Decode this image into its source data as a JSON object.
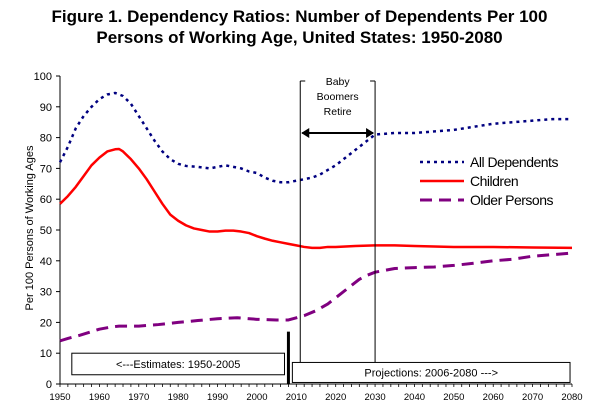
{
  "title_line1": "Figure 1.  Dependency Ratios: Number of Dependents Per 100",
  "title_line2": "Persons of Working Age, United States: 1950-2080",
  "chart_data": {
    "type": "line",
    "title": "Figure 1.  Dependency Ratios: Number of Dependents Per 100 Persons of Working Age, United States: 1950-2080",
    "ylabel": "Per 100 Persons of Working Ages",
    "xlabel": "",
    "xlim": [
      1950,
      2080
    ],
    "ylim": [
      0,
      100
    ],
    "x_ticks": [
      "1950",
      "1960",
      "1970",
      "1980",
      "1990",
      "2000",
      "2010",
      "2020",
      "2030",
      "2040",
      "2050",
      "2060",
      "2070",
      "2080"
    ],
    "y_ticks": [
      "0",
      "10",
      "20",
      "30",
      "40",
      "50",
      "60",
      "70",
      "80",
      "90",
      "100"
    ],
    "grid": false,
    "legend_position": "right",
    "series": [
      {
        "name": "All Dependents",
        "color": "#000080",
        "dash": "dotted",
        "points": [
          [
            1950,
            72
          ],
          [
            1952,
            77
          ],
          [
            1954,
            83
          ],
          [
            1956,
            87
          ],
          [
            1958,
            90
          ],
          [
            1960,
            92.5
          ],
          [
            1962,
            94
          ],
          [
            1964,
            94.5
          ],
          [
            1966,
            93.5
          ],
          [
            1968,
            91
          ],
          [
            1970,
            87
          ],
          [
            1972,
            83
          ],
          [
            1974,
            79
          ],
          [
            1976,
            75.5
          ],
          [
            1978,
            73
          ],
          [
            1980,
            71.5
          ],
          [
            1982,
            70.8
          ],
          [
            1985,
            70.5
          ],
          [
            1988,
            70
          ],
          [
            1990,
            70.5
          ],
          [
            1992,
            71
          ],
          [
            1994,
            70.5
          ],
          [
            1996,
            70
          ],
          [
            1998,
            69
          ],
          [
            2000,
            68.5
          ],
          [
            2002,
            67
          ],
          [
            2004,
            66
          ],
          [
            2006,
            65.5
          ],
          [
            2008,
            65.5
          ],
          [
            2010,
            66
          ],
          [
            2012,
            66.5
          ],
          [
            2014,
            67
          ],
          [
            2016,
            68
          ],
          [
            2018,
            69.5
          ],
          [
            2020,
            71
          ],
          [
            2022,
            73
          ],
          [
            2024,
            75
          ],
          [
            2026,
            77
          ],
          [
            2028,
            79
          ],
          [
            2030,
            81
          ],
          [
            2035,
            81.5
          ],
          [
            2040,
            81.5
          ],
          [
            2045,
            82
          ],
          [
            2050,
            82.5
          ],
          [
            2055,
            83.5
          ],
          [
            2060,
            84.5
          ],
          [
            2065,
            85
          ],
          [
            2070,
            85.5
          ],
          [
            2075,
            86
          ],
          [
            2080,
            86
          ]
        ]
      },
      {
        "name": "Children",
        "color": "#ff0000",
        "dash": "solid",
        "points": [
          [
            1950,
            58.5
          ],
          [
            1952,
            61
          ],
          [
            1954,
            64
          ],
          [
            1956,
            67.5
          ],
          [
            1958,
            71
          ],
          [
            1960,
            73.5
          ],
          [
            1962,
            75.5
          ],
          [
            1964,
            76.2
          ],
          [
            1965,
            76.3
          ],
          [
            1966,
            75.5
          ],
          [
            1968,
            73
          ],
          [
            1970,
            70
          ],
          [
            1972,
            66.5
          ],
          [
            1974,
            62.5
          ],
          [
            1976,
            58.5
          ],
          [
            1978,
            55
          ],
          [
            1980,
            53
          ],
          [
            1982,
            51.5
          ],
          [
            1984,
            50.5
          ],
          [
            1986,
            50
          ],
          [
            1988,
            49.5
          ],
          [
            1990,
            49.5
          ],
          [
            1992,
            49.8
          ],
          [
            1994,
            49.8
          ],
          [
            1996,
            49.5
          ],
          [
            1998,
            49
          ],
          [
            2000,
            48
          ],
          [
            2002,
            47.2
          ],
          [
            2004,
            46.5
          ],
          [
            2006,
            46
          ],
          [
            2008,
            45.5
          ],
          [
            2010,
            45
          ],
          [
            2012,
            44.5
          ],
          [
            2014,
            44.2
          ],
          [
            2016,
            44.2
          ],
          [
            2018,
            44.5
          ],
          [
            2020,
            44.5
          ],
          [
            2025,
            44.8
          ],
          [
            2030,
            45
          ],
          [
            2035,
            45
          ],
          [
            2040,
            44.8
          ],
          [
            2050,
            44.5
          ],
          [
            2060,
            44.5
          ],
          [
            2070,
            44.3
          ],
          [
            2080,
            44.2
          ]
        ]
      },
      {
        "name": "Older Persons",
        "color": "#800080",
        "dash": "dashed",
        "points": [
          [
            1950,
            14
          ],
          [
            1952,
            14.8
          ],
          [
            1955,
            15.8
          ],
          [
            1958,
            17
          ],
          [
            1960,
            17.8
          ],
          [
            1963,
            18.5
          ],
          [
            1965,
            18.8
          ],
          [
            1970,
            18.8
          ],
          [
            1975,
            19.3
          ],
          [
            1980,
            20
          ],
          [
            1985,
            20.6
          ],
          [
            1990,
            21.2
          ],
          [
            1995,
            21.5
          ],
          [
            2000,
            21
          ],
          [
            2005,
            20.8
          ],
          [
            2008,
            20.8
          ],
          [
            2010,
            21.5
          ],
          [
            2012,
            22.2
          ],
          [
            2015,
            23.8
          ],
          [
            2018,
            26
          ],
          [
            2020,
            28
          ],
          [
            2023,
            31
          ],
          [
            2026,
            34
          ],
          [
            2028,
            35.3
          ],
          [
            2030,
            36.3
          ],
          [
            2035,
            37.5
          ],
          [
            2040,
            37.8
          ],
          [
            2045,
            38
          ],
          [
            2050,
            38.5
          ],
          [
            2055,
            39.2
          ],
          [
            2060,
            40
          ],
          [
            2065,
            40.5
          ],
          [
            2070,
            41.5
          ],
          [
            2075,
            42
          ],
          [
            2080,
            42.5
          ]
        ]
      }
    ],
    "annotations": {
      "boomers_box": [
        "Baby",
        "Boomers",
        "Retire"
      ],
      "estimates_label": "<---Estimates: 1950-2005",
      "projections_label": "Projections: 2006-2080 --->",
      "boomers_start": 2011,
      "boomers_end": 2030,
      "divider_year": 2008
    }
  }
}
